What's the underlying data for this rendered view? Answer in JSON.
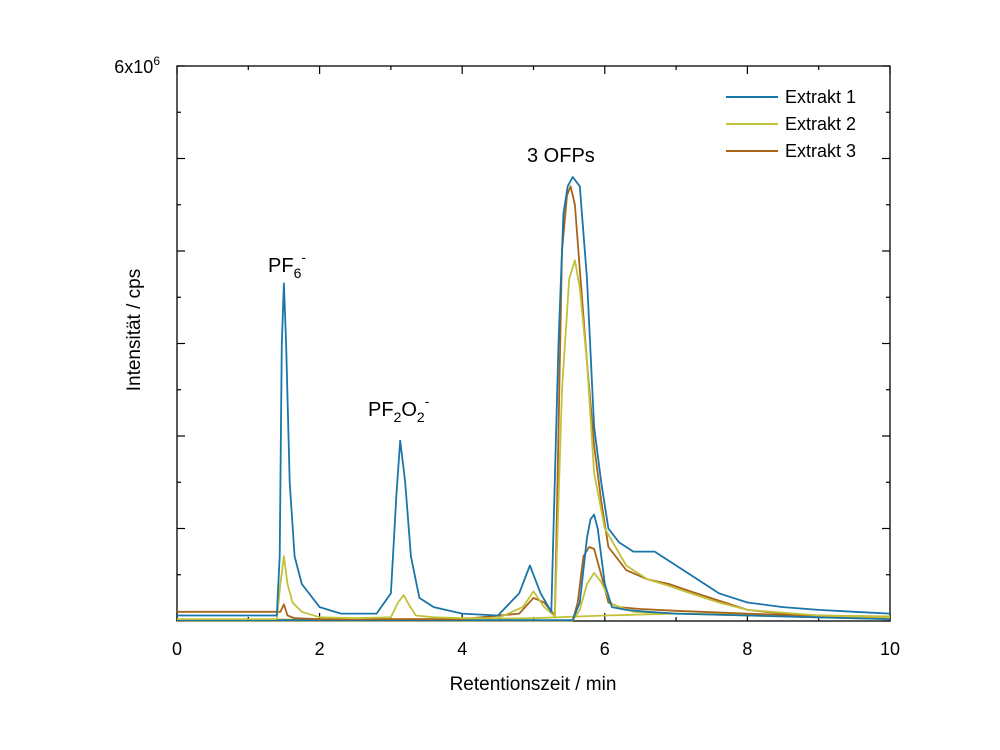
{
  "chart_data": {
    "type": "line",
    "xlabel": "Retentionszeit / min",
    "ylabel": "Intensität / cps",
    "xlim": [
      0,
      10
    ],
    "ylim": [
      0,
      6000000
    ],
    "x_ticks": [
      "0",
      "2",
      "4",
      "6",
      "8",
      "10"
    ],
    "y_top_label": {
      "base": "6x10",
      "exp": "6"
    },
    "grid": false,
    "legend_position": "top-right",
    "series": [
      {
        "name": "Extrakt 1",
        "color": "#1a75a8",
        "x": [
          0,
          1.4,
          1.44,
          1.47,
          1.5,
          1.53,
          1.58,
          1.65,
          1.75,
          2.0,
          2.3,
          2.8,
          3.0,
          3.08,
          3.13,
          3.2,
          3.28,
          3.4,
          3.6,
          4.0,
          4.5,
          4.8,
          4.95,
          5.1,
          5.25,
          5.35,
          5.42,
          5.48,
          5.55,
          5.65,
          5.75,
          5.85,
          5.95,
          6.05,
          6.2,
          6.4,
          6.7,
          7.0,
          7.2,
          7.6,
          8.0,
          8.5,
          9.0,
          9.5,
          10.0
        ],
        "y": [
          60000,
          60000,
          700000,
          3000000,
          3650000,
          3000000,
          1500000,
          700000,
          400000,
          150000,
          80000,
          80000,
          300000,
          1400000,
          1950000,
          1500000,
          700000,
          250000,
          150000,
          80000,
          60000,
          300000,
          600000,
          300000,
          100000,
          3000000,
          4400000,
          4700000,
          4800000,
          4700000,
          3700000,
          2100000,
          1500000,
          1000000,
          850000,
          750000,
          750000,
          600000,
          500000,
          300000,
          200000,
          150000,
          120000,
          100000,
          80000
        ]
      },
      {
        "name": "Extrakt 2",
        "color": "#c2c23a",
        "x": [
          0,
          1.4,
          1.45,
          1.5,
          1.55,
          1.62,
          1.75,
          2.0,
          2.5,
          3.0,
          3.1,
          3.18,
          3.25,
          3.35,
          3.6,
          4.0,
          4.5,
          4.85,
          5.0,
          5.15,
          5.3,
          5.4,
          5.5,
          5.58,
          5.65,
          5.75,
          5.85,
          6.0,
          6.3,
          6.6,
          6.9,
          7.2,
          7.6,
          8.0,
          9.0,
          10.0
        ],
        "y": [
          20000,
          20000,
          400000,
          700000,
          400000,
          200000,
          100000,
          40000,
          30000,
          40000,
          200000,
          280000,
          180000,
          60000,
          40000,
          30000,
          30000,
          150000,
          320000,
          150000,
          50000,
          2500000,
          3700000,
          3900000,
          3600000,
          2800000,
          1600000,
          1000000,
          600000,
          450000,
          380000,
          300000,
          200000,
          120000,
          60000,
          40000
        ]
      },
      {
        "name": "Extrakt 3",
        "color": "#a8651a",
        "x": [
          0,
          1.0,
          1.3,
          1.45,
          1.5,
          1.55,
          1.65,
          2.0,
          2.5,
          3.0,
          4.0,
          4.8,
          5.0,
          5.15,
          5.3,
          5.4,
          5.47,
          5.52,
          5.58,
          5.65,
          5.75,
          5.85,
          5.95,
          6.05,
          6.3,
          6.6,
          6.9,
          7.2,
          7.6,
          8.0,
          8.5,
          9.0,
          10.0
        ],
        "y": [
          100000,
          100000,
          100000,
          100000,
          180000,
          60000,
          30000,
          20000,
          20000,
          20000,
          20000,
          80000,
          250000,
          200000,
          60000,
          4000000,
          4600000,
          4700000,
          4500000,
          3800000,
          2800000,
          1900000,
          1300000,
          800000,
          550000,
          450000,
          400000,
          320000,
          220000,
          120000,
          80000,
          60000,
          40000
        ]
      },
      {
        "name": "",
        "color": "#1a75a8",
        "x": [
          0,
          5.55,
          5.65,
          5.75,
          5.8,
          5.85,
          5.9,
          6.0,
          6.1,
          6.3,
          6.6,
          7.0,
          8.0,
          9.0,
          10.0
        ],
        "y": [
          10000,
          10000,
          200000,
          900000,
          1100000,
          1150000,
          1000000,
          400000,
          150000,
          120000,
          100000,
          80000,
          60000,
          40000,
          20000
        ]
      },
      {
        "name": "",
        "color": "#c2c23a",
        "x": [
          0,
          5.55,
          5.65,
          5.75,
          5.85,
          5.95,
          6.1,
          6.4,
          7.0,
          8.0,
          9.0,
          10.0
        ],
        "y": [
          5000,
          5000,
          120000,
          400000,
          520000,
          420000,
          180000,
          100000,
          80000,
          60000,
          40000,
          20000
        ]
      },
      {
        "name": "",
        "color": "#a8651a",
        "x": [
          0,
          5.55,
          5.62,
          5.7,
          5.78,
          5.85,
          5.95,
          6.05,
          6.2,
          6.5,
          7.0,
          8.0,
          9.0,
          10.0
        ],
        "y": [
          5000,
          5000,
          200000,
          700000,
          800000,
          780000,
          500000,
          200000,
          150000,
          130000,
          110000,
          80000,
          50000,
          30000
        ]
      },
      {
        "name": "",
        "color": "#c2c23a",
        "x": [
          0,
          4.0,
          5.0,
          6.0,
          7.0,
          8.0,
          9.0,
          10.0
        ],
        "y": [
          15000,
          20000,
          30000,
          60000,
          80000,
          70000,
          60000,
          50000
        ]
      }
    ],
    "annotations": [
      {
        "base": "PF",
        "sub": "6",
        "sup": "-"
      },
      {
        "base": "PF",
        "sub1": "2",
        "mid": "O",
        "sub2": "2",
        "sup": "-"
      },
      {
        "text": "3 OFPs"
      }
    ]
  }
}
